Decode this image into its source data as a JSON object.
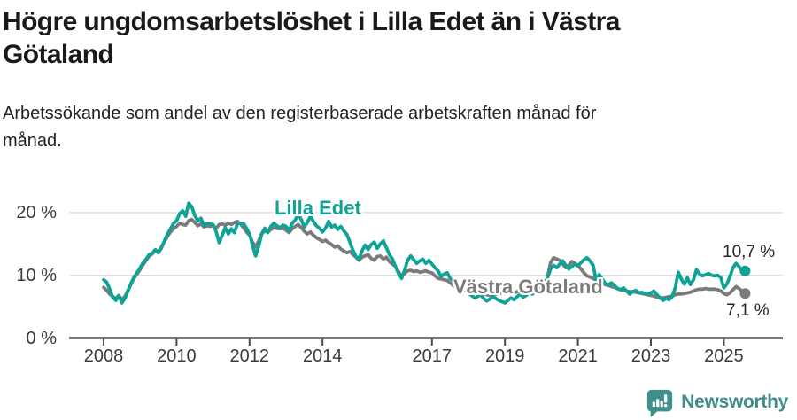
{
  "header": {
    "title": "Högre ungdomsarbetslöshet i Lilla Edet än i Västra Götaland",
    "title_lines": [
      "Högre ungdomsarbetslöshet i Lilla Edet än i Västra",
      "Götaland"
    ],
    "subtitle": "Arbetssökande som andel av den registerbaserade arbetskraften månad för månad.",
    "subtitle_lines": [
      "Arbetssökande som andel av den registerbaserade arbetskraften månad för",
      "månad."
    ]
  },
  "footer": {
    "brand": "Newsworthy",
    "brand_color": "#3f8e8a"
  },
  "colors": {
    "accent_teal": "#0fa296",
    "line_gray": "#7b7b7b",
    "grid": "#dcdcdc",
    "axis": "#4a4a4a",
    "tick_text": "#3b3b3b"
  },
  "chart_data": {
    "type": "line",
    "title": "Högre ungdomsarbetslöshet i Lilla Edet än i Västra Götaland",
    "subtitle": "Arbetssökande som andel av den registerbaserade arbetskraften månad för månad.",
    "x_unit": "month",
    "x_start_year": 2008,
    "x_start_month": 1,
    "x_end_year": 2025,
    "x_end_month": 8,
    "ylim": [
      0,
      22
    ],
    "grid": true,
    "legend_position": "inline-labels",
    "yticks": [
      {
        "value": 20,
        "label": "20 %"
      },
      {
        "value": 10,
        "label": "10 %"
      },
      {
        "value": 0,
        "label": "0 %"
      }
    ],
    "xticks": [
      {
        "value": 2008,
        "label": "2008"
      },
      {
        "value": 2010,
        "label": "2010"
      },
      {
        "value": 2012,
        "label": "2012"
      },
      {
        "value": 2014,
        "label": "2014"
      },
      {
        "value": 2017,
        "label": "2017"
      },
      {
        "value": 2019,
        "label": "2019"
      },
      {
        "value": 2021,
        "label": "2021"
      },
      {
        "value": 2023,
        "label": "2023"
      },
      {
        "value": 2025,
        "label": "2025"
      }
    ],
    "series": [
      {
        "name": "Lilla Edet",
        "color": "#0fa296",
        "end_value": 10.7,
        "end_value_label": "10,7 %",
        "values": [
          9.3,
          8.9,
          7.8,
          6.5,
          6.0,
          6.7,
          5.6,
          6.3,
          7.5,
          8.7,
          9.7,
          10.4,
          11.2,
          12.0,
          12.6,
          13.3,
          13.5,
          14.1,
          13.6,
          14.3,
          15.5,
          16.6,
          17.4,
          18.3,
          18.7,
          19.8,
          20.3,
          19.4,
          21.5,
          20.9,
          19.5,
          18.7,
          19.1,
          17.9,
          18.3,
          18.2,
          18.1,
          17.0,
          15.2,
          16.4,
          17.6,
          16.6,
          17.4,
          16.8,
          18.2,
          18.3,
          18.3,
          17.5,
          16.6,
          14.8,
          13.1,
          14.6,
          16.6,
          17.5,
          16.8,
          17.8,
          18.3,
          17.9,
          17.6,
          18.0,
          17.8,
          17.1,
          18.3,
          18.8,
          19.7,
          18.9,
          17.7,
          18.4,
          19.4,
          18.6,
          17.9,
          17.5,
          16.9,
          17.5,
          18.6,
          17.7,
          18.0,
          17.3,
          17.8,
          17.1,
          16.5,
          15.3,
          14.0,
          13.0,
          12.6,
          13.9,
          14.8,
          14.1,
          14.9,
          15.3,
          14.3,
          15.0,
          15.5,
          14.4,
          13.3,
          12.6,
          11.4,
          10.3,
          9.5,
          10.8,
          12.4,
          13.1,
          12.5,
          11.9,
          12.3,
          12.6,
          11.9,
          12.4,
          11.8,
          11.2,
          10.7,
          9.8,
          10.2,
          10.4,
          9.5,
          9.2,
          8.8,
          8.4,
          8.0,
          7.6,
          7.2,
          6.8,
          6.4,
          6.6,
          6.9,
          6.3,
          5.9,
          6.2,
          6.6,
          6.3,
          6.0,
          5.8,
          5.6,
          6.0,
          6.4,
          6.1,
          6.6,
          7.0,
          6.5,
          6.8,
          7.2,
          7.0,
          7.3,
          7.6,
          8.0,
          8.6,
          9.6,
          11.0,
          11.6,
          11.2,
          11.8,
          12.3,
          11.6,
          11.0,
          11.4,
          11.8,
          11.5,
          12.0,
          12.5,
          12.8,
          12.3,
          11.6,
          9.2,
          10.1,
          9.4,
          8.7,
          8.5,
          8.8,
          8.4,
          7.9,
          7.7,
          8.0,
          7.5,
          7.0,
          7.4,
          7.6,
          7.2,
          7.3,
          7.1,
          7.0,
          7.2,
          7.5,
          6.9,
          6.4,
          6.0,
          6.3,
          6.1,
          6.6,
          8.0,
          10.5,
          9.4,
          8.6,
          9.6,
          8.5,
          9.3,
          10.9,
          10.2,
          9.9,
          10.1,
          10.3,
          10.0,
          9.9,
          10.0,
          9.6,
          8.0,
          8.6,
          9.8,
          11.2,
          11.9,
          11.4,
          10.5,
          10.7
        ]
      },
      {
        "name": "Västra Götaland",
        "color": "#7b7b7b",
        "end_value": 7.1,
        "end_value_label": "7,1 %",
        "values": [
          8.1,
          7.6,
          7.0,
          6.6,
          6.3,
          6.8,
          6.1,
          6.6,
          7.6,
          8.6,
          9.5,
          10.2,
          10.9,
          11.7,
          12.4,
          13.1,
          13.4,
          14.0,
          13.8,
          14.5,
          15.4,
          16.2,
          16.9,
          17.4,
          17.8,
          18.3,
          18.1,
          18.0,
          18.7,
          18.9,
          18.4,
          17.9,
          18.2,
          17.7,
          17.9,
          17.8,
          17.9,
          17.5,
          18.1,
          18.2,
          18.0,
          18.3,
          18.1,
          18.4,
          18.6,
          18.2,
          17.6,
          16.9,
          16.4,
          15.3,
          14.5,
          15.5,
          16.6,
          17.1,
          16.9,
          17.3,
          17.6,
          17.5,
          17.4,
          17.5,
          17.2,
          16.8,
          17.4,
          17.8,
          18.1,
          17.6,
          17.0,
          16.6,
          16.9,
          16.4,
          16.0,
          15.7,
          15.4,
          15.6,
          15.2,
          14.9,
          14.5,
          14.7,
          14.2,
          13.9,
          13.6,
          13.8,
          13.3,
          12.9,
          12.4,
          12.9,
          13.1,
          13.3,
          12.7,
          12.4,
          13.0,
          13.1,
          12.6,
          12.9,
          12.2,
          11.8,
          11.4,
          10.6,
          9.8,
          10.3,
          10.7,
          10.8,
          10.6,
          10.7,
          10.5,
          10.6,
          10.7,
          10.5,
          10.4,
          9.9,
          9.5,
          9.4,
          9.3,
          9.2,
          8.8,
          8.4,
          8.1,
          7.9,
          7.8,
          7.7,
          7.6,
          7.4,
          7.2,
          7.1,
          7.0,
          7.1,
          6.9,
          6.8,
          6.9,
          7.0,
          7.1,
          7.2,
          7.1,
          7.2,
          7.3,
          7.2,
          7.4,
          7.5,
          7.4,
          7.5,
          7.6,
          7.5,
          7.6,
          7.8,
          8.0,
          8.4,
          9.7,
          12.0,
          12.8,
          12.6,
          12.4,
          11.8,
          11.2,
          11.6,
          12.2,
          11.9,
          11.6,
          11.0,
          10.4,
          9.9,
          9.7,
          9.5,
          9.2,
          8.9,
          8.7,
          8.5,
          8.4,
          8.2,
          8.1,
          7.9,
          7.7,
          7.6,
          7.5,
          7.4,
          7.4,
          7.3,
          7.2,
          7.1,
          7.0,
          6.9,
          6.8,
          6.7,
          6.5,
          6.4,
          6.4,
          6.5,
          6.6,
          6.7,
          6.9,
          7.0,
          7.0,
          7.1,
          7.2,
          7.3,
          7.5,
          7.7,
          7.8,
          7.8,
          7.9,
          7.8,
          7.8,
          7.8,
          7.7,
          7.5,
          7.1,
          6.9,
          7.2,
          7.7,
          8.2,
          7.9,
          7.4,
          7.1
        ]
      }
    ]
  }
}
